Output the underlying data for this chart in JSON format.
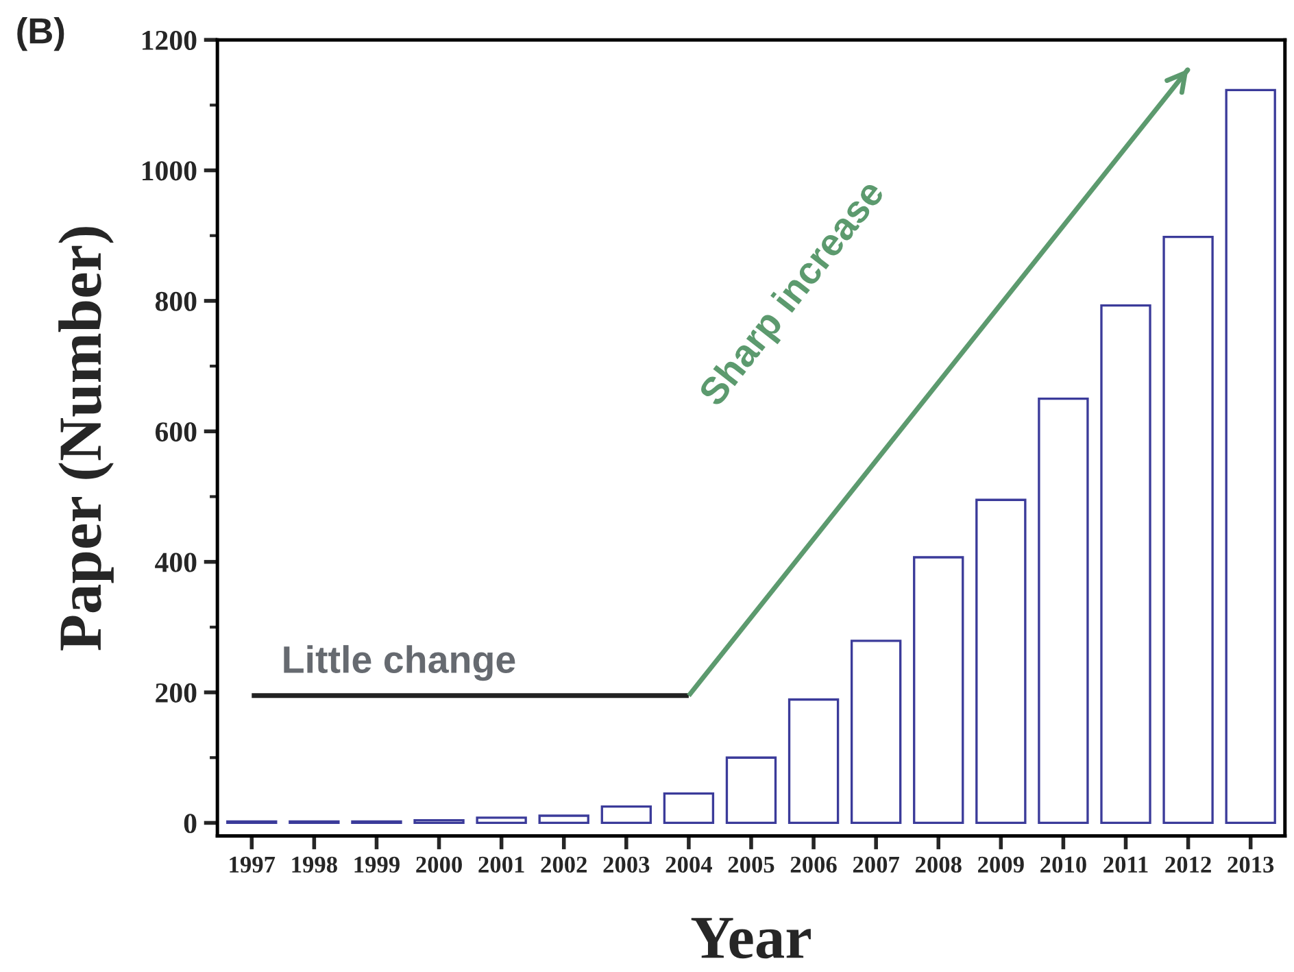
{
  "chart_data": {
    "type": "bar",
    "xlabel": "Year",
    "ylabel": "Paper (Number)",
    "categories": [
      "1997",
      "1998",
      "1999",
      "2000",
      "2001",
      "2002",
      "2003",
      "2004",
      "2005",
      "2006",
      "2007",
      "2008",
      "2009",
      "2010",
      "2011",
      "2012",
      "2013"
    ],
    "series": [
      {
        "color": "#3b3b9a",
        "values": [
          2,
          2,
          2,
          4,
          8,
          11,
          25,
          45,
          100,
          189,
          279,
          407,
          495,
          650,
          793,
          898,
          1123
        ]
      },
      {
        "type": "line",
        "color": "#222222",
        "values": [
          195,
          null,
          null,
          null,
          null,
          null,
          null,
          195,
          null,
          null,
          null,
          null,
          null,
          null,
          null,
          null,
          null
        ]
      },
      {
        "type": "line",
        "color": "#5c9a6e",
        "values": [
          null,
          null,
          null,
          null,
          null,
          null,
          null,
          195,
          null,
          null,
          null,
          null,
          null,
          null,
          null,
          1155,
          null
        ]
      }
    ],
    "ylim": [
      -20,
      1200
    ],
    "yticks": [
      0,
      200,
      400,
      600,
      800,
      1000,
      1200
    ],
    "grid": false,
    "annotations": [
      "(B)",
      "Little change",
      "Sharp increase"
    ]
  }
}
